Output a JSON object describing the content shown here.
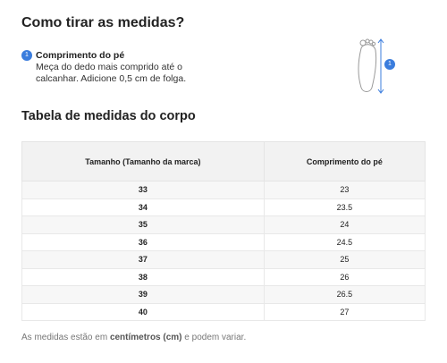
{
  "header": {
    "title": "Como tirar as medidas?"
  },
  "step": {
    "badge": "1",
    "title": "Comprimento do pé",
    "description": "Meça do dedo mais comprido até o calcanhar. Adicione 0,5 cm de folga."
  },
  "figure": {
    "badge": "1"
  },
  "section": {
    "title": "Tabela de medidas do corpo"
  },
  "table": {
    "columns": [
      "Tamanho (Tamanho da marca)",
      "Comprimento do pé"
    ],
    "rows": [
      [
        "33",
        "23"
      ],
      [
        "34",
        "23.5"
      ],
      [
        "35",
        "24"
      ],
      [
        "36",
        "24.5"
      ],
      [
        "37",
        "25"
      ],
      [
        "38",
        "26"
      ],
      [
        "39",
        "26.5"
      ],
      [
        "40",
        "27"
      ]
    ]
  },
  "footer": {
    "before": "As medidas estão em ",
    "bold": "centímetros (cm)",
    "after": " e podem variar."
  }
}
